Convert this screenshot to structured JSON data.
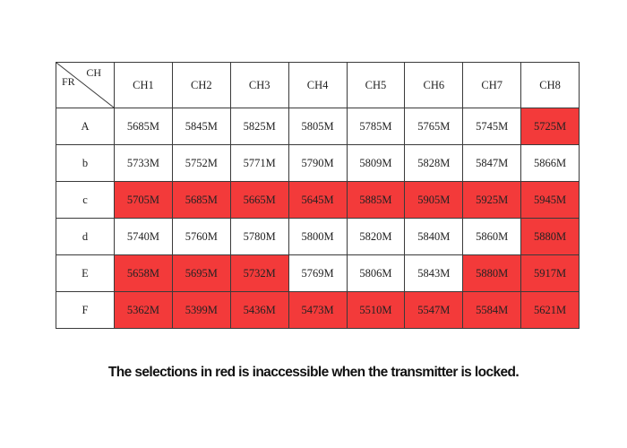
{
  "table": {
    "corner": {
      "top_label": "CH",
      "bottom_label": "FR"
    },
    "columns": [
      "CH1",
      "CH2",
      "CH3",
      "CH4",
      "CH5",
      "CH6",
      "CH7",
      "CH8"
    ],
    "rows": [
      {
        "label": "A",
        "cells": [
          {
            "value": "5685M",
            "locked": false
          },
          {
            "value": "5845M",
            "locked": false
          },
          {
            "value": "5825M",
            "locked": false
          },
          {
            "value": "5805M",
            "locked": false
          },
          {
            "value": "5785M",
            "locked": false
          },
          {
            "value": "5765M",
            "locked": false
          },
          {
            "value": "5745M",
            "locked": false
          },
          {
            "value": "5725M",
            "locked": true
          }
        ]
      },
      {
        "label": "b",
        "cells": [
          {
            "value": "5733M",
            "locked": false
          },
          {
            "value": "5752M",
            "locked": false
          },
          {
            "value": "5771M",
            "locked": false
          },
          {
            "value": "5790M",
            "locked": false
          },
          {
            "value": "5809M",
            "locked": false
          },
          {
            "value": "5828M",
            "locked": false
          },
          {
            "value": "5847M",
            "locked": false
          },
          {
            "value": "5866M",
            "locked": false
          }
        ]
      },
      {
        "label": "c",
        "cells": [
          {
            "value": "5705M",
            "locked": true
          },
          {
            "value": "5685M",
            "locked": true
          },
          {
            "value": "5665M",
            "locked": true
          },
          {
            "value": "5645M",
            "locked": true
          },
          {
            "value": "5885M",
            "locked": true
          },
          {
            "value": "5905M",
            "locked": true
          },
          {
            "value": "5925M",
            "locked": true
          },
          {
            "value": "5945M",
            "locked": true
          }
        ]
      },
      {
        "label": "d",
        "cells": [
          {
            "value": "5740M",
            "locked": false
          },
          {
            "value": "5760M",
            "locked": false
          },
          {
            "value": "5780M",
            "locked": false
          },
          {
            "value": "5800M",
            "locked": false
          },
          {
            "value": "5820M",
            "locked": false
          },
          {
            "value": "5840M",
            "locked": false
          },
          {
            "value": "5860M",
            "locked": false
          },
          {
            "value": "5880M",
            "locked": true
          }
        ]
      },
      {
        "label": "E",
        "cells": [
          {
            "value": "5658M",
            "locked": true
          },
          {
            "value": "5695M",
            "locked": true
          },
          {
            "value": "5732M",
            "locked": true
          },
          {
            "value": "5769M",
            "locked": false
          },
          {
            "value": "5806M",
            "locked": false
          },
          {
            "value": "5843M",
            "locked": false
          },
          {
            "value": "5880M",
            "locked": true
          },
          {
            "value": "5917M",
            "locked": true
          }
        ]
      },
      {
        "label": "F",
        "cells": [
          {
            "value": "5362M",
            "locked": true
          },
          {
            "value": "5399M",
            "locked": true
          },
          {
            "value": "5436M",
            "locked": true
          },
          {
            "value": "5473M",
            "locked": true
          },
          {
            "value": "5510M",
            "locked": true
          },
          {
            "value": "5547M",
            "locked": true
          },
          {
            "value": "5584M",
            "locked": true
          },
          {
            "value": "5621M",
            "locked": true
          }
        ]
      }
    ]
  },
  "caption": "The selections in red is inaccessible when the transmitter is locked.",
  "colors": {
    "locked": "#f33a3a",
    "unlocked": "#ffffff",
    "border": "#3a3a3a"
  }
}
